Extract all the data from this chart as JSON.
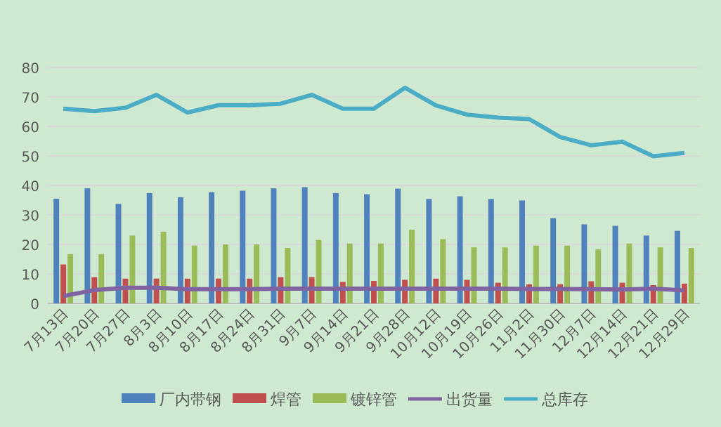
{
  "chart_data": {
    "type": "bar",
    "categories": [
      "7月13日",
      "7月20日",
      "7月27日",
      "8月3日",
      "8月10日",
      "8月17日",
      "8月24日",
      "8月31日",
      "9月7日",
      "9月14日",
      "9月21日",
      "9月28日",
      "10月12日",
      "10月19日",
      "10月26日",
      "11月2日",
      "11月30日",
      "12月7日",
      "12月14日",
      "12月21日",
      "12月29日"
    ],
    "series": [
      {
        "name": "厂内带钢",
        "color": "#4f81bd",
        "values": [
          35.5,
          39,
          33.7,
          37.4,
          36,
          37.7,
          38.2,
          39,
          39.4,
          37.4,
          37,
          38.9,
          35.4,
          36.3,
          35.4,
          34.9,
          28.9,
          26.8,
          26.3,
          23,
          24.6
        ]
      },
      {
        "name": "焊管",
        "color": "#c0504d",
        "values": [
          13.2,
          8.9,
          8.4,
          8.4,
          8.4,
          8.4,
          8.4,
          8.9,
          8.9,
          7.3,
          7.6,
          8,
          8.4,
          8,
          7,
          6.5,
          6.5,
          7.5,
          7,
          6.2,
          6.7
        ]
      },
      {
        "name": "镀锌管",
        "color": "#9bbb59",
        "values": [
          16.7,
          16.7,
          23,
          24.3,
          19.6,
          20,
          20,
          18.8,
          21.5,
          20.3,
          20.3,
          25,
          21.8,
          19,
          19,
          19.6,
          19.6,
          18.3,
          20.3,
          19,
          18.8
        ]
      },
      {
        "name": "出货量",
        "type": "line",
        "color": "#8064a2",
        "values": [
          2.5,
          4.5,
          5.3,
          5.3,
          4.8,
          4.8,
          4.8,
          5,
          5,
          5,
          5,
          5,
          5,
          5,
          5,
          4.9,
          4.9,
          4.8,
          4.7,
          5,
          4.4
        ]
      },
      {
        "name": "总库存",
        "type": "line",
        "color": "#4bacc6",
        "values": [
          66,
          65.2,
          66.3,
          70.7,
          64.7,
          67.2,
          67.2,
          67.7,
          70.7,
          66,
          66,
          73.1,
          67.1,
          64,
          63,
          62.5,
          56.4,
          53.6,
          54.8,
          49.9,
          51
        ]
      }
    ],
    "ylim": [
      0,
      80
    ],
    "yticks": [
      0,
      10,
      20,
      30,
      40,
      50,
      60,
      70,
      80
    ],
    "grid": "y",
    "legend": "bottom",
    "marker": "none"
  }
}
